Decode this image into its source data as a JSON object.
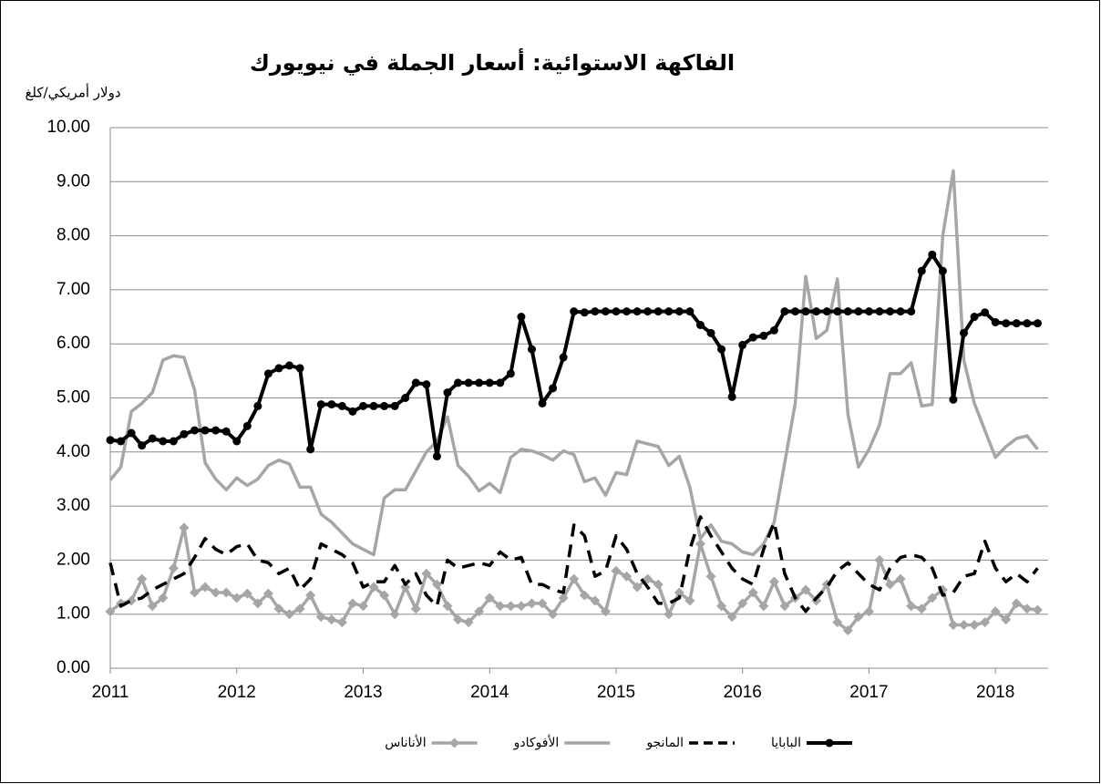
{
  "chart_data": {
    "type": "line",
    "title": "الفاكهة الاستوائية: أسعار الجملة في  نيويورك",
    "y_label": "دولار أمريكي/كلغ",
    "categories": [
      "2011",
      null,
      null,
      null,
      null,
      null,
      null,
      null,
      null,
      null,
      null,
      null,
      "2012",
      null,
      null,
      null,
      null,
      null,
      null,
      null,
      null,
      null,
      null,
      null,
      "2013",
      null,
      null,
      null,
      null,
      null,
      null,
      null,
      null,
      null,
      null,
      null,
      "2014",
      null,
      null,
      null,
      null,
      null,
      null,
      null,
      null,
      null,
      null,
      null,
      "2015",
      null,
      null,
      null,
      null,
      null,
      null,
      null,
      null,
      null,
      null,
      null,
      "2016",
      null,
      null,
      null,
      null,
      null,
      null,
      null,
      null,
      null,
      null,
      null,
      "2017",
      null,
      null,
      null,
      null,
      null,
      null,
      null,
      null,
      null,
      null,
      null,
      "2018",
      null,
      null,
      null,
      null
    ],
    "ylim": [
      0,
      10
    ],
    "yticks": [
      {
        "value": 0,
        "label": "0.00"
      },
      {
        "value": 1,
        "label": "1.00"
      },
      {
        "value": 2,
        "label": "2.00"
      },
      {
        "value": 3,
        "label": "3.00"
      },
      {
        "value": 4,
        "label": "4.00"
      },
      {
        "value": 5,
        "label": "5.00"
      },
      {
        "value": 6,
        "label": "6.00"
      },
      {
        "value": 7,
        "label": "7.00"
      },
      {
        "value": 8,
        "label": "8.00"
      },
      {
        "value": 9,
        "label": "9.00"
      },
      {
        "value": 10,
        "label": "10.00"
      }
    ],
    "grid": true,
    "legend": "bottom",
    "series": [
      {
        "name": "البابايا",
        "color": "#000000",
        "dashed": false,
        "marker": "circle",
        "values": [
          4.22,
          4.2,
          4.35,
          4.12,
          4.25,
          4.2,
          4.2,
          4.33,
          4.4,
          4.4,
          4.4,
          4.38,
          4.2,
          4.48,
          4.85,
          5.45,
          5.55,
          5.6,
          5.55,
          4.05,
          4.88,
          4.88,
          4.85,
          4.75,
          4.85,
          4.85,
          4.85,
          4.85,
          5.0,
          5.28,
          5.25,
          3.92,
          5.1,
          5.28,
          5.28,
          5.28,
          5.28,
          5.28,
          5.45,
          6.5,
          5.9,
          4.9,
          5.18,
          5.75,
          6.6,
          6.58,
          6.6,
          6.6,
          6.6,
          6.6,
          6.6,
          6.6,
          6.6,
          6.6,
          6.6,
          6.6,
          6.35,
          6.2,
          5.9,
          5.02,
          5.98,
          6.12,
          6.15,
          6.25,
          6.6,
          6.6,
          6.6,
          6.6,
          6.6,
          6.6,
          6.6,
          6.6,
          6.6,
          6.6,
          6.6,
          6.6,
          6.6,
          7.35,
          7.65,
          7.35,
          4.97,
          6.2,
          6.5,
          6.58,
          6.4,
          6.38,
          6.38,
          6.38,
          6.38
        ]
      },
      {
        "name": "المانجو",
        "color": "#000000",
        "dashed": true,
        "marker": "none",
        "values": [
          1.95,
          1.15,
          1.25,
          1.3,
          1.45,
          1.55,
          1.65,
          1.75,
          2.05,
          2.4,
          2.2,
          2.1,
          2.25,
          2.3,
          2.0,
          1.95,
          1.75,
          1.85,
          1.45,
          1.65,
          2.3,
          2.2,
          2.1,
          1.95,
          1.5,
          1.6,
          1.6,
          1.9,
          1.55,
          1.75,
          1.35,
          1.15,
          2.0,
          1.85,
          1.9,
          1.95,
          1.9,
          2.15,
          2.0,
          2.05,
          1.55,
          1.55,
          1.45,
          1.4,
          2.65,
          2.45,
          1.7,
          1.8,
          2.45,
          2.2,
          1.75,
          1.5,
          1.2,
          1.2,
          1.3,
          2.2,
          2.8,
          2.45,
          2.15,
          1.85,
          1.65,
          1.55,
          2.2,
          2.7,
          1.75,
          1.3,
          1.05,
          1.3,
          1.5,
          1.8,
          1.95,
          1.75,
          1.55,
          1.45,
          1.85,
          2.05,
          2.1,
          2.05,
          1.85,
          1.35,
          1.4,
          1.7,
          1.75,
          2.35,
          1.85,
          1.6,
          1.75,
          1.6,
          1.85
        ]
      },
      {
        "name": "الأفوكادو",
        "color": "#a6a6a6",
        "dashed": false,
        "marker": "none",
        "values": [
          3.48,
          3.72,
          4.75,
          4.9,
          5.1,
          5.7,
          5.78,
          5.75,
          5.15,
          3.8,
          3.5,
          3.3,
          3.52,
          3.38,
          3.5,
          3.75,
          3.85,
          3.78,
          3.35,
          3.35,
          2.85,
          2.7,
          2.5,
          2.3,
          2.2,
          2.1,
          3.15,
          3.3,
          3.3,
          3.65,
          4.0,
          4.2,
          4.65,
          3.75,
          3.55,
          3.28,
          3.42,
          3.25,
          3.9,
          4.05,
          4.02,
          3.95,
          3.85,
          4.02,
          3.95,
          3.45,
          3.52,
          3.2,
          3.62,
          3.58,
          4.2,
          4.15,
          4.1,
          3.75,
          3.92,
          3.35,
          2.4,
          2.65,
          2.35,
          2.3,
          2.15,
          2.1,
          2.3,
          2.7,
          3.8,
          4.9,
          7.25,
          6.1,
          6.25,
          7.2,
          4.7,
          3.72,
          4.05,
          4.5,
          5.45,
          5.45,
          5.65,
          4.85,
          4.88,
          8.0,
          9.2,
          5.7,
          4.9,
          4.4,
          3.9,
          4.1,
          4.25,
          4.3,
          4.05
        ]
      },
      {
        "name": "الأناناس",
        "color": "#a6a6a6",
        "dashed": false,
        "marker": "diamond",
        "values": [
          1.05,
          1.2,
          1.25,
          1.65,
          1.15,
          1.3,
          1.85,
          2.6,
          1.4,
          1.5,
          1.4,
          1.4,
          1.3,
          1.38,
          1.2,
          1.38,
          1.1,
          1.0,
          1.1,
          1.35,
          0.95,
          0.9,
          0.85,
          1.2,
          1.15,
          1.5,
          1.35,
          1.0,
          1.5,
          1.1,
          1.75,
          1.55,
          1.15,
          0.9,
          0.85,
          1.05,
          1.3,
          1.15,
          1.15,
          1.15,
          1.2,
          1.2,
          1.0,
          1.3,
          1.65,
          1.35,
          1.25,
          1.05,
          1.8,
          1.7,
          1.5,
          1.65,
          1.55,
          1.0,
          1.4,
          1.25,
          2.3,
          1.7,
          1.15,
          0.95,
          1.2,
          1.4,
          1.15,
          1.6,
          1.15,
          1.3,
          1.45,
          1.25,
          1.55,
          0.85,
          0.7,
          0.95,
          1.05,
          2.0,
          1.55,
          1.65,
          1.15,
          1.1,
          1.3,
          1.45,
          0.8,
          0.8,
          0.8,
          0.85,
          1.05,
          0.9,
          1.2,
          1.1,
          1.08
        ]
      }
    ]
  }
}
